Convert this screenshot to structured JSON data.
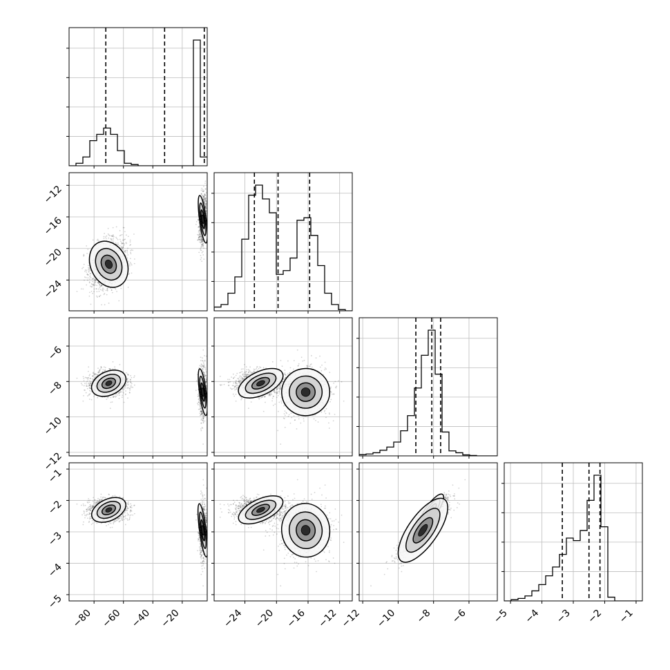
{
  "chart_data": {
    "type": "scatter",
    "title": "",
    "layout": "corner-plot",
    "grid": true,
    "n_params": 4,
    "parameters": [
      {
        "label": "",
        "range": [
          -97,
          -3
        ],
        "ticks": [
          -80,
          -60,
          -40,
          -20
        ],
        "tick_labels": [
          "−80",
          "−60",
          "−40",
          "−20"
        ]
      },
      {
        "label": "",
        "range": [
          -27.9,
          -10.4
        ],
        "ticks": [
          -24,
          -20,
          -16,
          -12
        ],
        "tick_labels": [
          "−24",
          "−20",
          "−16",
          "−12"
        ]
      },
      {
        "label": "",
        "range": [
          -12.2,
          -4.4
        ],
        "ticks": [
          -12,
          -10,
          -8,
          -6
        ],
        "tick_labels": [
          "−12",
          "−10",
          "−8",
          "−6"
        ]
      },
      {
        "label": "",
        "range": [
          -5.2,
          -0.8
        ],
        "ticks": [
          -5,
          -4,
          -3,
          -2,
          -1
        ],
        "tick_labels": [
          "−5",
          "−4",
          "−3",
          "−2",
          "−1"
        ]
      }
    ],
    "row_tick_labels": [
      null,
      {
        "ticks": [
          -24,
          -20,
          -16,
          -12
        ],
        "tick_labels": [
          "−24",
          "−20",
          "−16",
          "−12"
        ]
      },
      {
        "ticks": [
          -12,
          -10,
          -8,
          -6
        ],
        "tick_labels": [
          "−12",
          "−10",
          "−8",
          "−6"
        ]
      },
      {
        "ticks": [
          -5,
          -4,
          -3,
          -2,
          -1
        ],
        "tick_labels": [
          "−5",
          "−4",
          "−3",
          "−2",
          "−1"
        ]
      }
    ],
    "quantiles": [
      [
        -72,
        -32,
        -5
      ],
      [
        -22.8,
        -19.8,
        -15.8
      ],
      [
        -9.0,
        -8.1,
        -7.6
      ],
      [
        -3.35,
        -2.5,
        -2.15
      ]
    ],
    "histograms": [
      {
        "bins": [
          -97,
          -92.3,
          -87.6,
          -82.9,
          -78.2,
          -73.5,
          -68.8,
          -64.1,
          -59.4,
          -54.7,
          -50,
          -45.3,
          -40.6,
          -35.9,
          -31.2,
          -26.5,
          -21.8,
          -17.1,
          -12.4,
          -7.7,
          -3
        ],
        "counts": [
          0,
          0.02,
          0.07,
          0.2,
          0.25,
          0.3,
          0.25,
          0.12,
          0.02,
          0.01,
          0,
          0,
          0,
          0,
          0,
          0,
          0,
          0,
          1.0,
          0.07
        ]
      },
      {
        "bins": [
          -27.9,
          -27.025,
          -26.15,
          -25.275,
          -24.4,
          -23.525,
          -22.65,
          -21.775,
          -20.9,
          -20.025,
          -19.15,
          -18.275,
          -17.4,
          -16.525,
          -15.65,
          -14.775,
          -13.9,
          -13.025,
          -12.15,
          -11.275,
          -10.4
        ],
        "counts": [
          0.03,
          0.05,
          0.14,
          0.27,
          0.57,
          0.92,
          1.0,
          0.89,
          0.78,
          0.29,
          0.32,
          0.42,
          0.72,
          0.74,
          0.6,
          0.36,
          0.14,
          0.05,
          0.01,
          0.0
        ]
      },
      {
        "bins": [
          -12.2,
          -11.81,
          -11.42,
          -11.03,
          -10.64,
          -10.25,
          -9.86,
          -9.47,
          -9.08,
          -8.69,
          -8.3,
          -7.91,
          -7.52,
          -7.13,
          -6.74,
          -6.35,
          -5.96,
          -5.57,
          -5.18,
          -4.79,
          -4.4
        ],
        "counts": [
          0.01,
          0.015,
          0.025,
          0.045,
          0.07,
          0.11,
          0.2,
          0.32,
          0.54,
          0.8,
          1.0,
          0.65,
          0.19,
          0.04,
          0.025,
          0.008,
          0.003,
          0,
          0,
          0
        ]
      },
      {
        "bins": [
          -5.2,
          -4.98,
          -4.76,
          -4.54,
          -4.32,
          -4.1,
          -3.88,
          -3.66,
          -3.44,
          -3.22,
          -3.0,
          -2.78,
          -2.56,
          -2.34,
          -2.12,
          -1.9,
          -1.68,
          -1.46,
          -1.24,
          -1.02,
          -0.8
        ],
        "counts": [
          0,
          0.01,
          0.02,
          0.04,
          0.08,
          0.13,
          0.2,
          0.27,
          0.37,
          0.5,
          0.48,
          0.56,
          0.8,
          1.0,
          0.59,
          0.03,
          0,
          0,
          0,
          0
        ]
      }
    ],
    "modes": [
      {
        "weight": 0.6,
        "mean": [
          -70,
          -22.0,
          -8.1,
          -2.3
        ],
        "sd": [
          6.5,
          1.6,
          0.35,
          0.18
        ]
      },
      {
        "weight": 0.4,
        "mean": [
          -6,
          -16.3,
          -8.6,
          -2.95
        ],
        "sd": [
          1.2,
          1.6,
          0.7,
          0.45
        ]
      }
    ]
  }
}
